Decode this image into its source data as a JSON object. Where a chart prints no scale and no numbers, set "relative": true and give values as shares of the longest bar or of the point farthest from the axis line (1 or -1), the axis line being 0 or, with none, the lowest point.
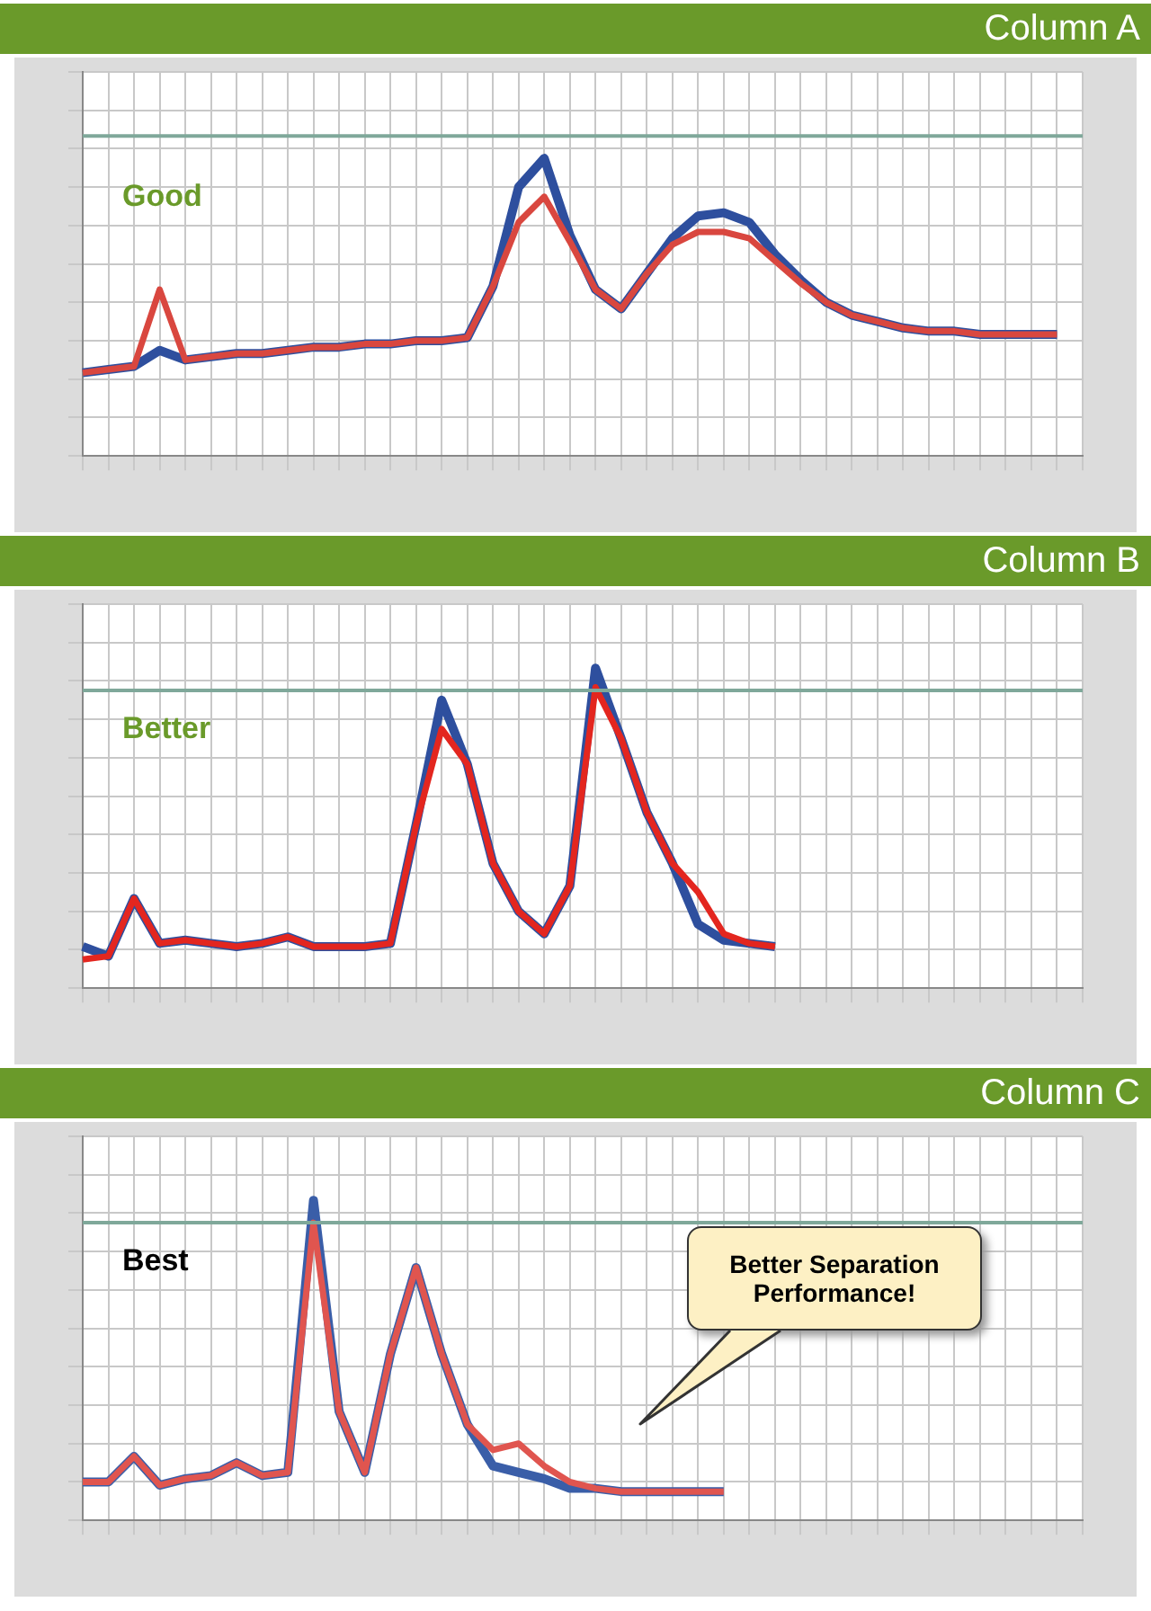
{
  "chart_data": [
    {
      "type": "line",
      "title": "Column A",
      "relative": true,
      "grid": true,
      "marker": "none",
      "annotations": [
        "Good"
      ],
      "categories": [
        null,
        null,
        null,
        null,
        null,
        null,
        null,
        null,
        null,
        null,
        null,
        null,
        null,
        null,
        null,
        null,
        null,
        null,
        null,
        null,
        null,
        null,
        null,
        null,
        null,
        null,
        null,
        null,
        null,
        null,
        null,
        null,
        null,
        null,
        null,
        null,
        null,
        null,
        null,
        null
      ],
      "series": [
        {
          "color": "#7fa89a",
          "values": [
            1,
            1,
            1,
            1,
            1,
            1,
            1,
            1,
            1,
            1,
            1,
            1,
            1,
            1,
            1,
            1,
            1,
            1,
            1,
            1,
            1,
            1,
            1,
            1,
            1,
            1,
            1,
            1,
            1,
            1,
            1,
            1,
            1,
            1,
            1,
            1,
            1,
            1,
            1,
            1
          ]
        },
        {
          "color": "#d9473f",
          "values": [
            0.26,
            0.27,
            0.28,
            0.52,
            0.3,
            0.31,
            0.32,
            0.32,
            0.33,
            0.34,
            0.34,
            0.35,
            0.35,
            0.36,
            0.36,
            0.37,
            0.53,
            0.73,
            0.81,
            0.67,
            0.52,
            0.46,
            0.57,
            0.66,
            0.7,
            0.7,
            0.68,
            0.61,
            0.54,
            0.48,
            0.44,
            0.42,
            0.4,
            0.39,
            0.39,
            0.38,
            0.38,
            0.38,
            0.38,
            null
          ]
        },
        {
          "color": "#2e4f9e",
          "values": [
            0.26,
            0.27,
            0.28,
            0.33,
            0.3,
            0.31,
            0.32,
            0.32,
            0.33,
            0.34,
            0.34,
            0.35,
            0.35,
            0.36,
            0.36,
            0.37,
            0.53,
            0.84,
            0.93,
            0.69,
            0.52,
            0.46,
            0.57,
            0.68,
            0.75,
            0.76,
            0.73,
            0.63,
            0.55,
            0.48,
            0.44,
            0.42,
            0.4,
            0.39,
            0.39,
            0.38,
            0.38,
            0.38,
            0.38,
            null
          ]
        }
      ]
    },
    {
      "type": "line",
      "title": "Column B",
      "relative": true,
      "grid": true,
      "marker": "none",
      "annotations": [
        "Better"
      ],
      "categories": [
        null,
        null,
        null,
        null,
        null,
        null,
        null,
        null,
        null,
        null,
        null,
        null,
        null,
        null,
        null,
        null,
        null,
        null,
        null,
        null,
        null,
        null,
        null,
        null,
        null,
        null,
        null,
        null,
        null,
        null,
        null,
        null,
        null,
        null,
        null,
        null,
        null,
        null,
        null,
        null
      ],
      "series": [
        {
          "color": "#7fa89a",
          "values": [
            0.93,
            0.93,
            0.93,
            0.93,
            0.93,
            0.93,
            0.93,
            0.93,
            0.93,
            0.93,
            0.93,
            0.93,
            0.93,
            0.93,
            0.93,
            0.93,
            0.93,
            0.93,
            0.93,
            0.93,
            0.93,
            0.93,
            0.93,
            0.93,
            0.93,
            0.93,
            0.93,
            0.93,
            0.93,
            0.93,
            0.93,
            0.93,
            0.93,
            0.93,
            0.93,
            0.93,
            0.93,
            0.93,
            0.93,
            0.93
          ]
        },
        {
          "color": "#e3261f",
          "values": [
            0.09,
            0.1,
            0.28,
            0.14,
            0.15,
            0.14,
            0.13,
            0.14,
            0.16,
            0.13,
            0.13,
            0.13,
            0.14,
            0.51,
            0.81,
            0.7,
            0.39,
            0.24,
            0.17,
            0.32,
            0.94,
            0.78,
            0.55,
            0.39,
            0.3,
            0.17,
            0.14,
            0.13,
            null,
            null,
            null,
            null,
            null,
            null,
            null,
            null,
            null,
            null,
            null,
            null
          ]
        },
        {
          "color": "#2e4f9e",
          "values": [
            0.13,
            0.1,
            0.28,
            0.14,
            0.15,
            0.14,
            0.13,
            0.14,
            0.16,
            0.13,
            0.13,
            0.13,
            0.14,
            0.51,
            0.9,
            0.7,
            0.39,
            0.24,
            0.17,
            0.32,
            1,
            0.78,
            0.55,
            0.39,
            0.2,
            0.15,
            0.14,
            0.13,
            null,
            null,
            null,
            null,
            null,
            null,
            null,
            null,
            null,
            null,
            null,
            null
          ]
        }
      ]
    },
    {
      "type": "line",
      "title": "Column C",
      "relative": true,
      "grid": true,
      "marker": "none",
      "annotations": [
        "Best",
        "Better Separation Performance!"
      ],
      "categories": [
        null,
        null,
        null,
        null,
        null,
        null,
        null,
        null,
        null,
        null,
        null,
        null,
        null,
        null,
        null,
        null,
        null,
        null,
        null,
        null,
        null,
        null,
        null,
        null,
        null,
        null,
        null,
        null,
        null,
        null,
        null,
        null,
        null,
        null,
        null,
        null,
        null,
        null,
        null,
        null
      ],
      "series": [
        {
          "color": "#7fa89a",
          "values": [
            0.93,
            0.93,
            0.93,
            0.93,
            0.93,
            0.93,
            0.93,
            0.93,
            0.93,
            0.93,
            0.93,
            0.93,
            0.93,
            0.93,
            0.93,
            0.93,
            0.93,
            0.93,
            0.93,
            0.93,
            0.93,
            0.93,
            0.93,
            0.93,
            0.93,
            0.93,
            0.93,
            0.93,
            0.93,
            0.93,
            0.93,
            0.93,
            0.93,
            0.93,
            0.93,
            0.93,
            0.93,
            0.93,
            0.93,
            0.93
          ]
        },
        {
          "color": "#e0554f",
          "values": [
            0.12,
            0.12,
            0.2,
            0.11,
            0.13,
            0.14,
            0.18,
            0.14,
            0.15,
            0.93,
            0.34,
            0.15,
            0.52,
            0.79,
            0.52,
            0.3,
            0.22,
            0.24,
            0.17,
            0.12,
            0.1,
            0.09,
            0.09,
            0.09,
            0.09,
            0.09,
            null,
            null,
            null,
            null,
            null,
            null,
            null,
            null,
            null,
            null,
            null,
            null,
            null,
            null
          ]
        },
        {
          "color": "#3a5ea8",
          "values": [
            0.12,
            0.12,
            0.2,
            0.11,
            0.13,
            0.14,
            0.18,
            0.14,
            0.15,
            1,
            0.34,
            0.15,
            0.52,
            0.79,
            0.52,
            0.3,
            0.17,
            0.15,
            0.13,
            0.1,
            0.1,
            0.09,
            0.09,
            0.09,
            0.09,
            0.09,
            null,
            null,
            null,
            null,
            null,
            null,
            null,
            null,
            null,
            null,
            null,
            null,
            null,
            null
          ]
        }
      ]
    }
  ]
}
